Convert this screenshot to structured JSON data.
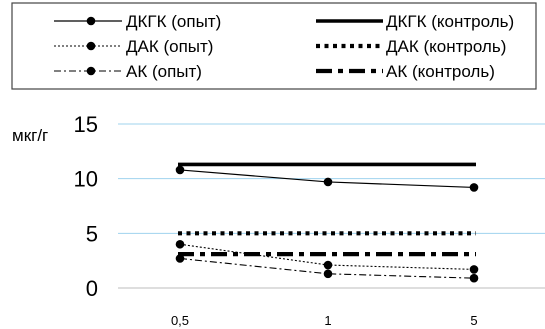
{
  "chart_data": {
    "type": "line",
    "x": [
      "0,5",
      "1",
      "5"
    ],
    "ylabel": "мкг/г",
    "ylim": [
      0,
      15
    ],
    "yticks": [
      "0",
      "5",
      "10",
      "15"
    ],
    "grid": true,
    "legend_position": "top",
    "series": [
      {
        "name": "ДКГК (опыт)",
        "values": [
          10.8,
          9.7,
          9.2
        ],
        "style": "solid-thin",
        "marker": true
      },
      {
        "name": "ДКГК (контроль)",
        "values": [
          11.3,
          11.3,
          11.3
        ],
        "style": "solid-thick",
        "marker": false
      },
      {
        "name": "ДАК (опыт)",
        "values": [
          4.0,
          2.1,
          1.7
        ],
        "style": "dotted-thin",
        "marker": true
      },
      {
        "name": "ДАК (контроль)",
        "values": [
          5.0,
          5.0,
          5.0
        ],
        "style": "dotted-thick",
        "marker": false
      },
      {
        "name": "АК (опыт)",
        "values": [
          2.7,
          1.3,
          0.9
        ],
        "style": "dashdot-thin",
        "marker": true
      },
      {
        "name": "АК (контроль)",
        "values": [
          3.1,
          3.1,
          3.1
        ],
        "style": "dashdot-thick",
        "marker": false
      }
    ],
    "colors": {
      "line": "#000000",
      "grid": "#9fd3ee",
      "axis": "#bdbdbd"
    }
  }
}
